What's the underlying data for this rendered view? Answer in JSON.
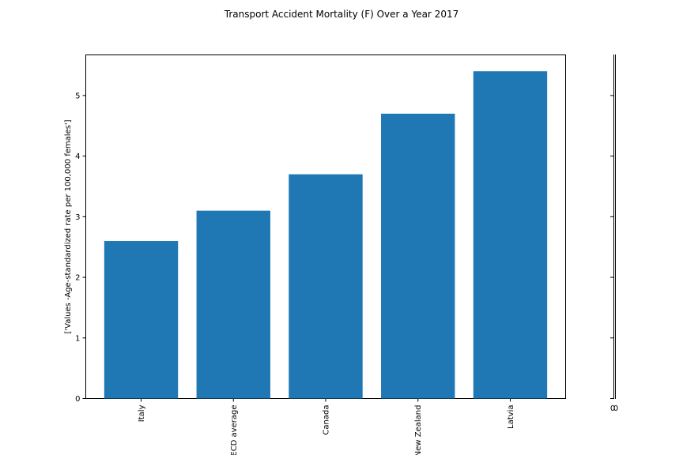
{
  "chart_data": {
    "type": "bar",
    "title": "Transport Accident Mortality (F) Over a Year 2017",
    "xlabel": "",
    "ylabel": "['Values -Age-standardized rate per 100,000 females']",
    "categories": [
      "Italy",
      "OECD average",
      "Canada",
      "New Zealand",
      "Latvia"
    ],
    "values": [
      2.6,
      3.1,
      3.7,
      4.7,
      5.4
    ],
    "ylim": [
      0,
      5.67
    ],
    "yticks": [
      "0",
      "1",
      "2",
      "3",
      "4",
      "5"
    ],
    "bar_color": "#1f77b4",
    "grid": false,
    "side_axis_tick_labels": [
      "0",
      "0"
    ]
  }
}
